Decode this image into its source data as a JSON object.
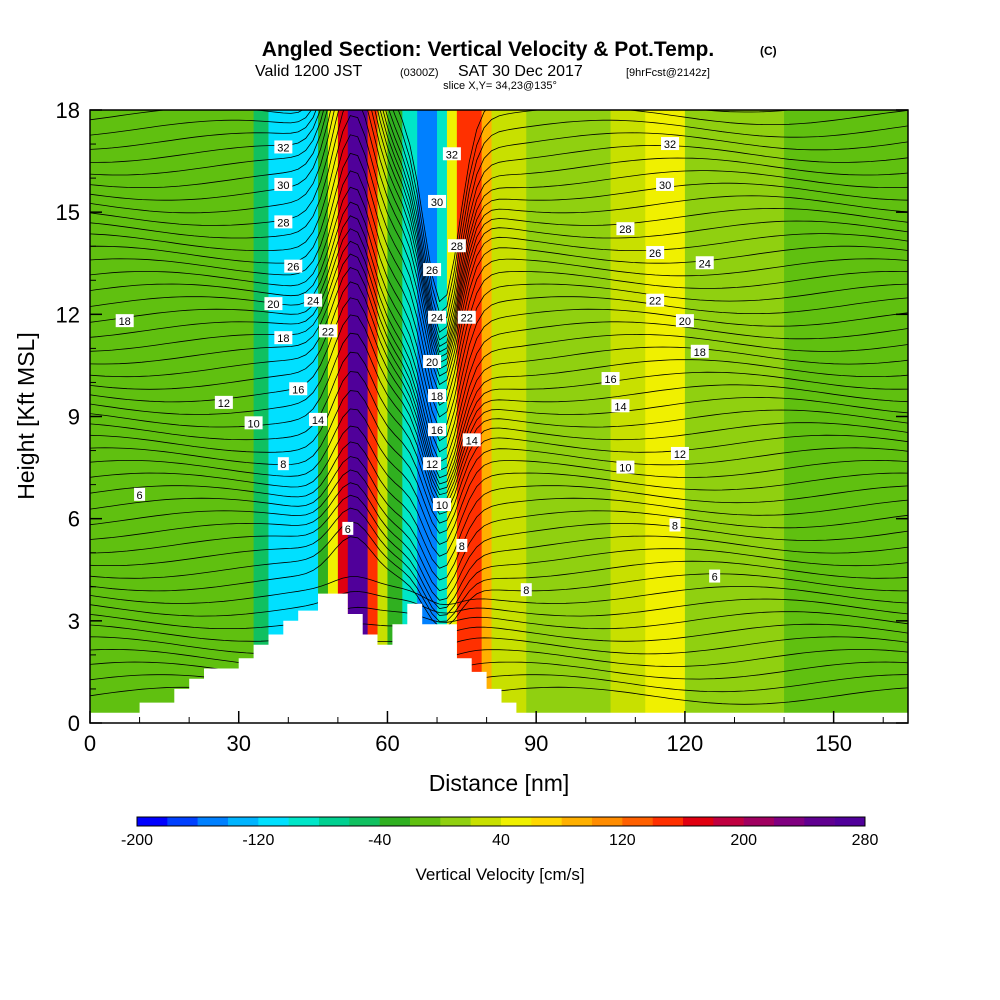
{
  "title": {
    "main": "Angled Section: Vertical Velocity & Pot.Temp.",
    "main_suffix": "(C)",
    "line2_a": "Valid 1200 JST",
    "line2_b": "(0300Z)",
    "line2_c": "SAT 30 Dec 2017",
    "line2_d": "[9hrFcst@2142z]",
    "line3": "slice X,Y= 34,23@135°"
  },
  "chart_data": {
    "type": "heatmap",
    "xlabel": "Distance [nm]",
    "ylabel": "Height [Kft MSL]",
    "xlim": [
      0,
      165
    ],
    "ylim": [
      0,
      18
    ],
    "x_ticks": [
      0,
      30,
      60,
      90,
      120,
      150
    ],
    "x_tick_labels": [
      "0",
      "30",
      "60",
      "90",
      "120",
      "150"
    ],
    "y_ticks": [
      0,
      3,
      6,
      9,
      12,
      15,
      18
    ],
    "y_tick_labels": [
      "0",
      "3",
      "6",
      "9",
      "12",
      "15",
      "18"
    ],
    "colorbar": {
      "title": "Vertical Velocity [cm/s]",
      "range": [
        -200,
        280
      ],
      "step": 20,
      "tick_values": [
        -200,
        -120,
        -40,
        40,
        120,
        200,
        280
      ],
      "tick_labels": [
        "-200",
        "-120",
        "-40",
        "40",
        "120",
        "200",
        "280"
      ],
      "colors": [
        "#0000ff",
        "#0040ff",
        "#0080ff",
        "#00b4ff",
        "#00e0ff",
        "#00e6c8",
        "#00d090",
        "#10c060",
        "#30b020",
        "#60c010",
        "#90d010",
        "#c8e000",
        "#f0f000",
        "#ffd800",
        "#ffb000",
        "#ff8c00",
        "#ff6000",
        "#ff3000",
        "#e00010",
        "#c00040",
        "#a00060",
        "#800080",
        "#600090",
        "#50009a"
      ]
    },
    "velocity_bands": [
      {
        "x0": 0,
        "x1": 33,
        "value": -10
      },
      {
        "x0": 33,
        "x1": 36,
        "value": -60
      },
      {
        "x0": 36,
        "x1": 46,
        "value": -110
      },
      {
        "x0": 46,
        "x1": 48,
        "value": -40
      },
      {
        "x0": 48,
        "x1": 50,
        "value": 50
      },
      {
        "x0": 50,
        "x1": 52,
        "value": 170
      },
      {
        "x0": 52,
        "x1": 56,
        "value": 270
      },
      {
        "x0": 56,
        "x1": 58,
        "value": 150
      },
      {
        "x0": 58,
        "x1": 60,
        "value": 30
      },
      {
        "x0": 60,
        "x1": 63,
        "value": -40
      },
      {
        "x0": 63,
        "x1": 66,
        "value": -90
      },
      {
        "x0": 66,
        "x1": 70,
        "value": -160
      },
      {
        "x0": 70,
        "x1": 72,
        "value": -90
      },
      {
        "x0": 72,
        "x1": 74,
        "value": 50
      },
      {
        "x0": 74,
        "x1": 79,
        "value": 150
      },
      {
        "x0": 79,
        "x1": 81,
        "value": 90
      },
      {
        "x0": 81,
        "x1": 88,
        "value": 30
      },
      {
        "x0": 88,
        "x1": 105,
        "value": 0
      },
      {
        "x0": 105,
        "x1": 112,
        "value": 20
      },
      {
        "x0": 112,
        "x1": 120,
        "value": 50
      },
      {
        "x0": 120,
        "x1": 140,
        "value": 0
      },
      {
        "x0": 140,
        "x1": 165,
        "value": -20
      }
    ],
    "terrain": {
      "x": [
        0,
        10,
        10,
        17,
        17,
        20,
        20,
        23,
        23,
        30,
        30,
        33,
        33,
        36,
        36,
        39,
        39,
        42,
        42,
        46,
        46,
        52,
        52,
        55,
        55,
        58,
        58,
        61,
        61,
        64,
        64,
        67,
        67,
        74,
        74,
        77,
        77,
        80,
        80,
        83,
        83,
        86,
        86,
        90,
        90,
        165
      ],
      "height": [
        0.3,
        0.3,
        0.6,
        0.6,
        1.0,
        1.0,
        1.3,
        1.3,
        1.6,
        1.6,
        1.9,
        1.9,
        2.3,
        2.3,
        2.6,
        2.6,
        3.0,
        3.0,
        3.3,
        3.3,
        3.8,
        3.8,
        3.2,
        3.2,
        2.6,
        2.6,
        2.3,
        2.3,
        2.9,
        2.9,
        3.5,
        3.5,
        2.9,
        2.9,
        1.9,
        1.9,
        1.5,
        1.5,
        1.0,
        1.0,
        0.6,
        0.6,
        0.3,
        0.3,
        0.3,
        0.3
      ]
    },
    "contour_labels": [
      {
        "x": 10,
        "y": 6.7,
        "text": "6"
      },
      {
        "x": 7,
        "y": 11.8,
        "text": "18"
      },
      {
        "x": 27,
        "y": 9.4,
        "text": "12"
      },
      {
        "x": 33,
        "y": 8.8,
        "text": "10"
      },
      {
        "x": 39,
        "y": 7.6,
        "text": "8"
      },
      {
        "x": 42,
        "y": 9.8,
        "text": "16"
      },
      {
        "x": 46,
        "y": 8.9,
        "text": "14"
      },
      {
        "x": 37,
        "y": 12.3,
        "text": "20"
      },
      {
        "x": 39,
        "y": 11.3,
        "text": "18"
      },
      {
        "x": 45,
        "y": 12.4,
        "text": "24"
      },
      {
        "x": 48,
        "y": 11.5,
        "text": "22"
      },
      {
        "x": 41,
        "y": 13.4,
        "text": "26"
      },
      {
        "x": 39,
        "y": 14.7,
        "text": "28"
      },
      {
        "x": 39,
        "y": 15.8,
        "text": "30"
      },
      {
        "x": 39,
        "y": 16.9,
        "text": "32"
      },
      {
        "x": 52,
        "y": 5.7,
        "text": "6"
      },
      {
        "x": 70,
        "y": 15.3,
        "text": "30"
      },
      {
        "x": 73,
        "y": 16.7,
        "text": "32"
      },
      {
        "x": 74,
        "y": 14.0,
        "text": "28"
      },
      {
        "x": 69,
        "y": 13.3,
        "text": "26"
      },
      {
        "x": 70,
        "y": 11.9,
        "text": "24"
      },
      {
        "x": 76,
        "y": 11.9,
        "text": "22"
      },
      {
        "x": 69,
        "y": 10.6,
        "text": "20"
      },
      {
        "x": 70,
        "y": 9.6,
        "text": "18"
      },
      {
        "x": 70,
        "y": 8.6,
        "text": "16"
      },
      {
        "x": 69,
        "y": 7.6,
        "text": "12"
      },
      {
        "x": 77,
        "y": 8.3,
        "text": "14"
      },
      {
        "x": 71,
        "y": 6.4,
        "text": "10"
      },
      {
        "x": 75,
        "y": 5.2,
        "text": "8"
      },
      {
        "x": 88,
        "y": 3.9,
        "text": "8"
      },
      {
        "x": 105,
        "y": 10.1,
        "text": "16"
      },
      {
        "x": 107,
        "y": 9.3,
        "text": "14"
      },
      {
        "x": 108,
        "y": 7.5,
        "text": "10"
      },
      {
        "x": 119,
        "y": 7.9,
        "text": "12"
      },
      {
        "x": 118,
        "y": 5.8,
        "text": "8"
      },
      {
        "x": 126,
        "y": 4.3,
        "text": "6"
      },
      {
        "x": 108,
        "y": 14.5,
        "text": "28"
      },
      {
        "x": 114,
        "y": 13.8,
        "text": "26"
      },
      {
        "x": 124,
        "y": 13.5,
        "text": "24"
      },
      {
        "x": 114,
        "y": 12.4,
        "text": "22"
      },
      {
        "x": 120,
        "y": 11.8,
        "text": "20"
      },
      {
        "x": 123,
        "y": 10.9,
        "text": "18"
      },
      {
        "x": 116,
        "y": 15.8,
        "text": "30"
      },
      {
        "x": 117,
        "y": 17.0,
        "text": "32"
      }
    ]
  }
}
